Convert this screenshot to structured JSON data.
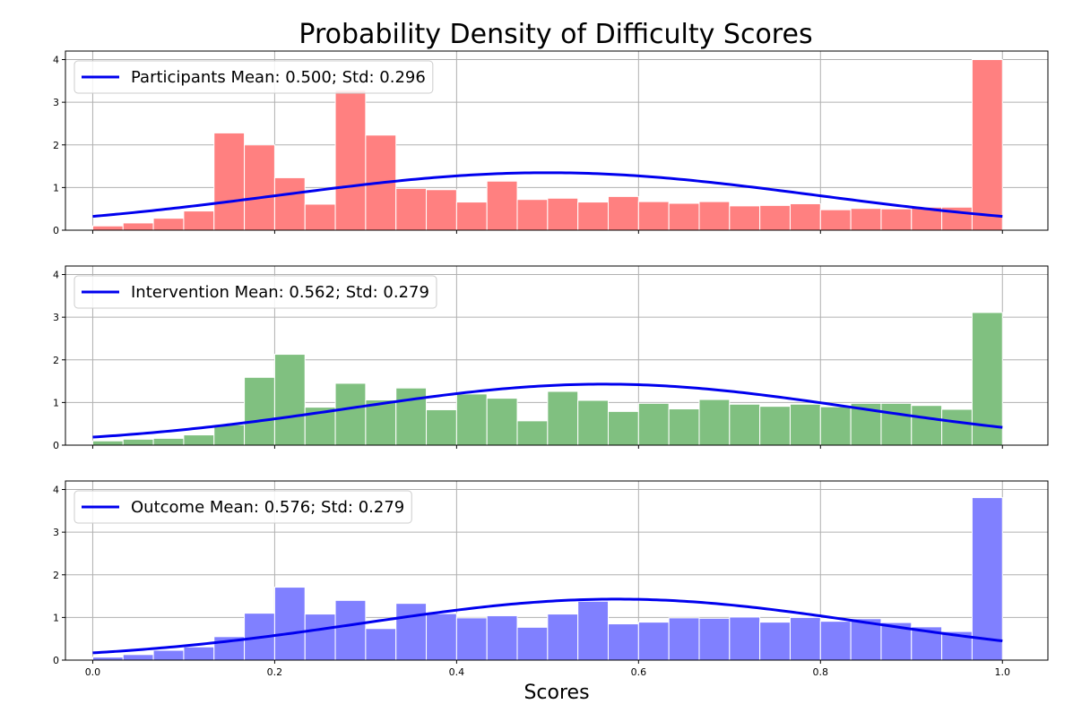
{
  "chart_data": {
    "type": "bar",
    "title": "Probability Density of Difficulty Scores",
    "xlabel": "Scores",
    "xlim": [
      -0.03,
      1.05
    ],
    "xticks": [
      "0.0",
      "0.2",
      "0.4",
      "0.6",
      "0.8",
      "1.0"
    ],
    "yticks": [
      "0",
      "1",
      "2",
      "3",
      "4"
    ],
    "ylim": [
      0,
      4.2
    ],
    "grid": true,
    "legend_position": "top-left",
    "bins": 30,
    "bin_range": [
      0,
      1
    ],
    "curve_color": "#0000ee",
    "panels": [
      {
        "legend": "Participants Mean: 0.500; Std: 0.296",
        "color": "#ff8080",
        "mean": 0.5,
        "std": 0.296,
        "values": [
          0.1,
          0.17,
          0.28,
          0.45,
          2.28,
          2.0,
          1.23,
          0.61,
          3.28,
          2.23,
          0.98,
          0.95,
          0.66,
          1.15,
          0.72,
          0.75,
          0.66,
          0.79,
          0.67,
          0.63,
          0.67,
          0.57,
          0.58,
          0.62,
          0.48,
          0.51,
          0.5,
          0.54,
          0.54,
          4.0
        ]
      },
      {
        "legend": "Intervention Mean: 0.562; Std: 0.279",
        "color": "#80c080",
        "mean": 0.562,
        "std": 0.279,
        "values": [
          0.1,
          0.14,
          0.16,
          0.24,
          0.48,
          1.59,
          2.13,
          0.89,
          1.45,
          1.06,
          1.34,
          0.83,
          1.2,
          1.1,
          0.57,
          1.26,
          1.05,
          0.79,
          0.98,
          0.85,
          1.07,
          0.96,
          0.91,
          0.96,
          0.9,
          0.98,
          0.98,
          0.93,
          0.84,
          3.11
        ]
      },
      {
        "legend": "Outcome Mean: 0.576; Std: 0.279",
        "color": "#8080ff",
        "mean": 0.576,
        "std": 0.279,
        "values": [
          0.07,
          0.13,
          0.23,
          0.31,
          0.55,
          1.1,
          1.71,
          1.08,
          1.4,
          0.74,
          1.33,
          1.09,
          0.99,
          1.04,
          0.77,
          1.08,
          1.38,
          0.85,
          0.89,
          0.99,
          0.98,
          1.01,
          0.89,
          1.0,
          0.91,
          0.97,
          0.88,
          0.78,
          0.67,
          3.81
        ]
      }
    ]
  }
}
